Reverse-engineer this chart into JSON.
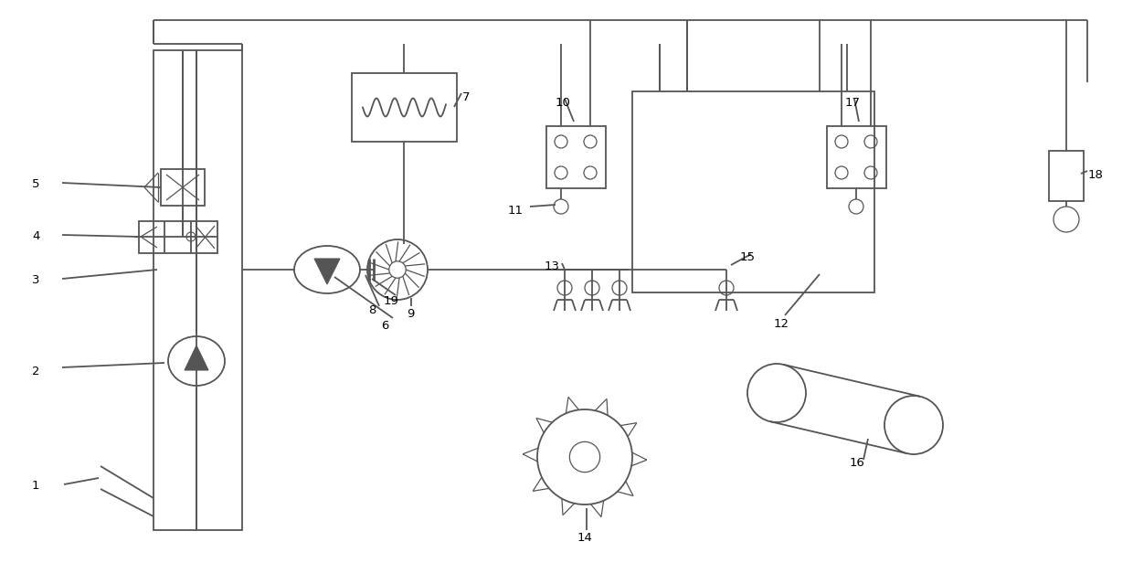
{
  "bg_color": "#ffffff",
  "line_color": "#555555",
  "lw": 1.3,
  "figsize": [
    12.4,
    6.16
  ],
  "dpi": 100
}
